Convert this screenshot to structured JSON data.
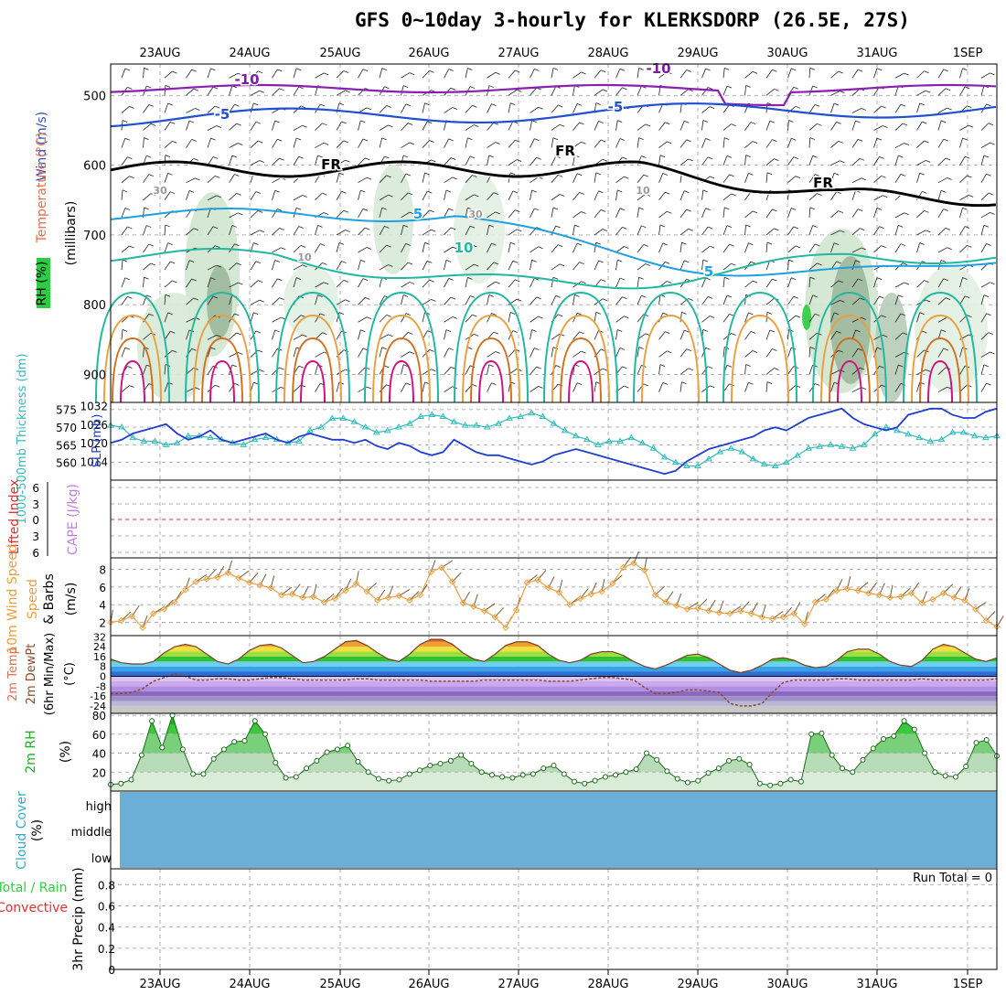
{
  "title": "GFS 0~10day 3-hourly for KLERKSDORP (26.5E, 27S)",
  "dates": [
    "23AUG",
    "24AUG",
    "25AUG",
    "26AUG",
    "27AUG",
    "28AUG",
    "29AUG",
    "30AUG",
    "31AUG",
    "1SEP"
  ],
  "colors": {
    "slp": "#1f3fd0",
    "thickness": "#33bbbb",
    "wind10": "#e8a040",
    "rh": "#1fb01f",
    "li": "#e23030",
    "cape": "#c080e0",
    "cloud": "#6baed6",
    "temp": "#e07020",
    "dewpt": "#8b4a2a",
    "barbs": "#7a5a3a"
  },
  "chart_data": [
    {
      "type": "contour",
      "panel": "upper-air",
      "ylabel_left": [
        "RH (%)",
        "Temperature (°C)",
        "Wind (m/s)"
      ],
      "ylabel_right": "(millibars)",
      "yticks": [
        "500",
        "600",
        "700",
        "800",
        "900"
      ],
      "contour_labels": [
        {
          "text": "-10",
          "color": "#7a1fa0"
        },
        {
          "text": "-10",
          "color": "#7a1fa0"
        },
        {
          "text": "-5",
          "color": "#2050d0"
        },
        {
          "text": "-5",
          "color": "#2050d0"
        },
        {
          "text": "FR",
          "color": "#000000"
        },
        {
          "text": "FR",
          "color": "#000000"
        },
        {
          "text": "FR",
          "color": "#000000"
        },
        {
          "text": "5",
          "color": "#1fa0e0"
        },
        {
          "text": "5",
          "color": "#1fa0e0"
        },
        {
          "text": "10",
          "color": "#20b8a0"
        },
        {
          "text": "30",
          "color": "#999999"
        },
        {
          "text": "10",
          "color": "#999999"
        },
        {
          "text": "10",
          "color": "#999999"
        },
        {
          "text": "30",
          "color": "#999999"
        }
      ]
    },
    {
      "type": "line",
      "panel": "slp-thickness",
      "ylabel_left": "1000-500mb Thickness (dm)",
      "ylabel_right": "SLP (mb)",
      "yticks_left": [
        "575",
        "570",
        "565",
        "560"
      ],
      "yticks_right": [
        "1032",
        "1026",
        "1020",
        "1014"
      ],
      "series": [
        {
          "name": "SLP (mb)",
          "values": [
            1020,
            1021,
            1023,
            1024,
            1025,
            1026,
            1023,
            1021,
            1022,
            1024,
            1021,
            1020,
            1021,
            1022,
            1023,
            1021,
            1020,
            1022,
            1023,
            1022,
            1021,
            1021,
            1020,
            1021,
            1019,
            1018,
            1020,
            1019,
            1017,
            1016,
            1017,
            1021,
            1019,
            1017,
            1016,
            1016,
            1015,
            1014,
            1013,
            1014,
            1016,
            1017,
            1018,
            1017,
            1016,
            1015,
            1014,
            1013,
            1012,
            1011,
            1010,
            1011,
            1014,
            1016,
            1018,
            1019,
            1020,
            1021,
            1022,
            1024,
            1025,
            1024,
            1026,
            1028,
            1029,
            1030,
            1031,
            1028,
            1026,
            1025,
            1024,
            1025,
            1029,
            1030,
            1031,
            1031,
            1029,
            1028,
            1028,
            1030,
            1031
          ]
        },
        {
          "name": "1000-500mb Thickness (dm)",
          "values": [
            570.5,
            570,
            567,
            566,
            566,
            565,
            565.5,
            567.5,
            567.5,
            567,
            566.5,
            565.5,
            565,
            566.5,
            567,
            566.5,
            565.5,
            566,
            569,
            570,
            572.5,
            572.5,
            571.5,
            570,
            568.5,
            569,
            570,
            571,
            573,
            573.5,
            573,
            571.5,
            570.5,
            570.5,
            570,
            571,
            572.5,
            573,
            574,
            573,
            571,
            569,
            567.5,
            566.5,
            565,
            566,
            566,
            567,
            565.5,
            564,
            561.5,
            560,
            559,
            559,
            561,
            563,
            564,
            563,
            561,
            559.5,
            559,
            560,
            562,
            564,
            564.5,
            565,
            564.5,
            564,
            565,
            568,
            570,
            569,
            568,
            567,
            566,
            566.5,
            568.5,
            568.5,
            567.5,
            567,
            567.5
          ]
        }
      ]
    },
    {
      "type": "line",
      "panel": "stability",
      "ylabel_left": [
        "Lifted Index",
        "CAPE (J/kg)"
      ],
      "yticks": [
        "6",
        "3",
        "0",
        "3",
        "6"
      ],
      "series": []
    },
    {
      "type": "line",
      "panel": "wind10m",
      "ylabel_left": [
        "10m Wind Speed",
        "& Barbs (m/s)"
      ],
      "yticks": [
        "8",
        "6",
        "4",
        "2"
      ],
      "series": [
        {
          "name": "10m Wind Speed (m/s)",
          "values": [
            2.0,
            2.2,
            2.7,
            1.4,
            3.0,
            3.5,
            4.3,
            5.7,
            6.6,
            6.9,
            7.1,
            7.6,
            7.0,
            6.5,
            6.2,
            5.9,
            5.1,
            5.2,
            4.8,
            4.9,
            4.3,
            4.7,
            5.6,
            6.4,
            5.5,
            4.5,
            4.8,
            5.0,
            4.5,
            5.1,
            7.7,
            8.2,
            6.6,
            4.2,
            3.8,
            3.3,
            2.6,
            1.4,
            3.4,
            6.5,
            6.8,
            5.9,
            5.4,
            4.0,
            4.7,
            5.2,
            5.5,
            6.4,
            8.2,
            8.7,
            7.9,
            5.1,
            4.3,
            3.9,
            3.5,
            3.6,
            3.3,
            3.1,
            3.0,
            3.3,
            3.0,
            2.6,
            2.4,
            2.6,
            3.0,
            1.8,
            4.3,
            4.6,
            5.6,
            5.8,
            5.6,
            5.3,
            5.1,
            4.8,
            4.9,
            5.3,
            4.2,
            4.6,
            5.3,
            4.8,
            4.5,
            3.5,
            2.2,
            1.5
          ]
        }
      ]
    },
    {
      "type": "area",
      "panel": "temperature",
      "ylabel_left": [
        "2m Temp",
        "2m DewPt",
        "(6hr Min/Max)",
        "(°C)"
      ],
      "yticks": [
        "32",
        "24",
        "16",
        "8",
        "0",
        "-8",
        "-16",
        "-24"
      ],
      "series": [
        {
          "name": "2m Temp (°C)",
          "values": [
            14,
            11,
            10,
            10,
            12,
            19,
            24,
            26,
            24,
            18,
            12,
            10,
            14,
            21,
            25,
            26,
            23,
            17,
            11,
            12,
            16,
            22,
            28,
            29,
            25,
            19,
            14,
            12,
            18,
            26,
            30,
            30,
            26,
            19,
            14,
            12,
            18,
            25,
            28,
            28,
            25,
            18,
            13,
            11,
            13,
            18,
            20,
            20,
            17,
            12,
            8,
            6,
            9,
            13,
            17,
            18,
            15,
            10,
            5,
            3,
            5,
            9,
            14,
            15,
            13,
            9,
            7,
            8,
            13,
            20,
            22,
            22,
            18,
            12,
            9,
            8,
            13,
            22,
            26,
            24,
            19,
            14,
            12,
            15
          ]
        },
        {
          "name": "2m DewPt (°C)",
          "values": [
            -14,
            -14,
            -13,
            -10,
            -4,
            -1,
            2,
            0,
            -3,
            -3,
            -2,
            -2,
            -3,
            -3,
            -2,
            -1,
            -1,
            -2,
            -3,
            -3,
            -3,
            -3,
            -3,
            -2,
            -2,
            -3,
            -3,
            -3,
            -3,
            -3,
            -4,
            -4,
            -4,
            -4,
            -4,
            -3,
            -3,
            -3,
            -3,
            -3,
            -3,
            -4,
            -4,
            -4,
            -3,
            -2,
            -1,
            -1,
            -2,
            -3,
            -9,
            -14,
            -14,
            -13,
            -11,
            -11,
            -12,
            -13,
            -22,
            -24,
            -24,
            -22,
            -13,
            -5,
            -3,
            -3,
            -3,
            -3,
            -2,
            -2,
            -3,
            -3,
            -3,
            -3,
            -3,
            -3,
            -2,
            -3,
            -3,
            -3,
            -3,
            -3,
            -3,
            -2
          ]
        }
      ]
    },
    {
      "type": "area",
      "panel": "rh2m",
      "ylabel_left": [
        "2m RH",
        "(%)"
      ],
      "yticks": [
        "80",
        "60",
        "40",
        "20"
      ],
      "series": [
        {
          "name": "2m RH (%)",
          "values": [
            7,
            8,
            12,
            38,
            74,
            46,
            80,
            44,
            18,
            18,
            34,
            44,
            52,
            53,
            74,
            60,
            30,
            14,
            15,
            24,
            32,
            41,
            44,
            48,
            31,
            20,
            13,
            11,
            12,
            18,
            22,
            27,
            29,
            32,
            38,
            29,
            20,
            17,
            15,
            14,
            17,
            18,
            24,
            27,
            18,
            10,
            8,
            11,
            15,
            17,
            20,
            23,
            40,
            33,
            21,
            13,
            9,
            11,
            19,
            24,
            32,
            34,
            28,
            8,
            6,
            8,
            12,
            10,
            60,
            61,
            38,
            24,
            20,
            33,
            45,
            55,
            58,
            74,
            65,
            40,
            20,
            16,
            15,
            26,
            51,
            54,
            37
          ]
        }
      ]
    },
    {
      "type": "area",
      "panel": "cloud",
      "ylabel_left": [
        "Cloud Cover",
        "(%)"
      ],
      "ytick_labels": [
        "high",
        "middle",
        "low"
      ]
    },
    {
      "type": "bar",
      "panel": "precip",
      "ylabel_left": [
        "Total / Rain",
        "Convective",
        "3hr Precip (mm)"
      ],
      "yticks": [
        "0.8",
        "0.6",
        "0.4",
        "0.2",
        "0"
      ],
      "run_total": "Run Total = 0",
      "series": []
    }
  ]
}
